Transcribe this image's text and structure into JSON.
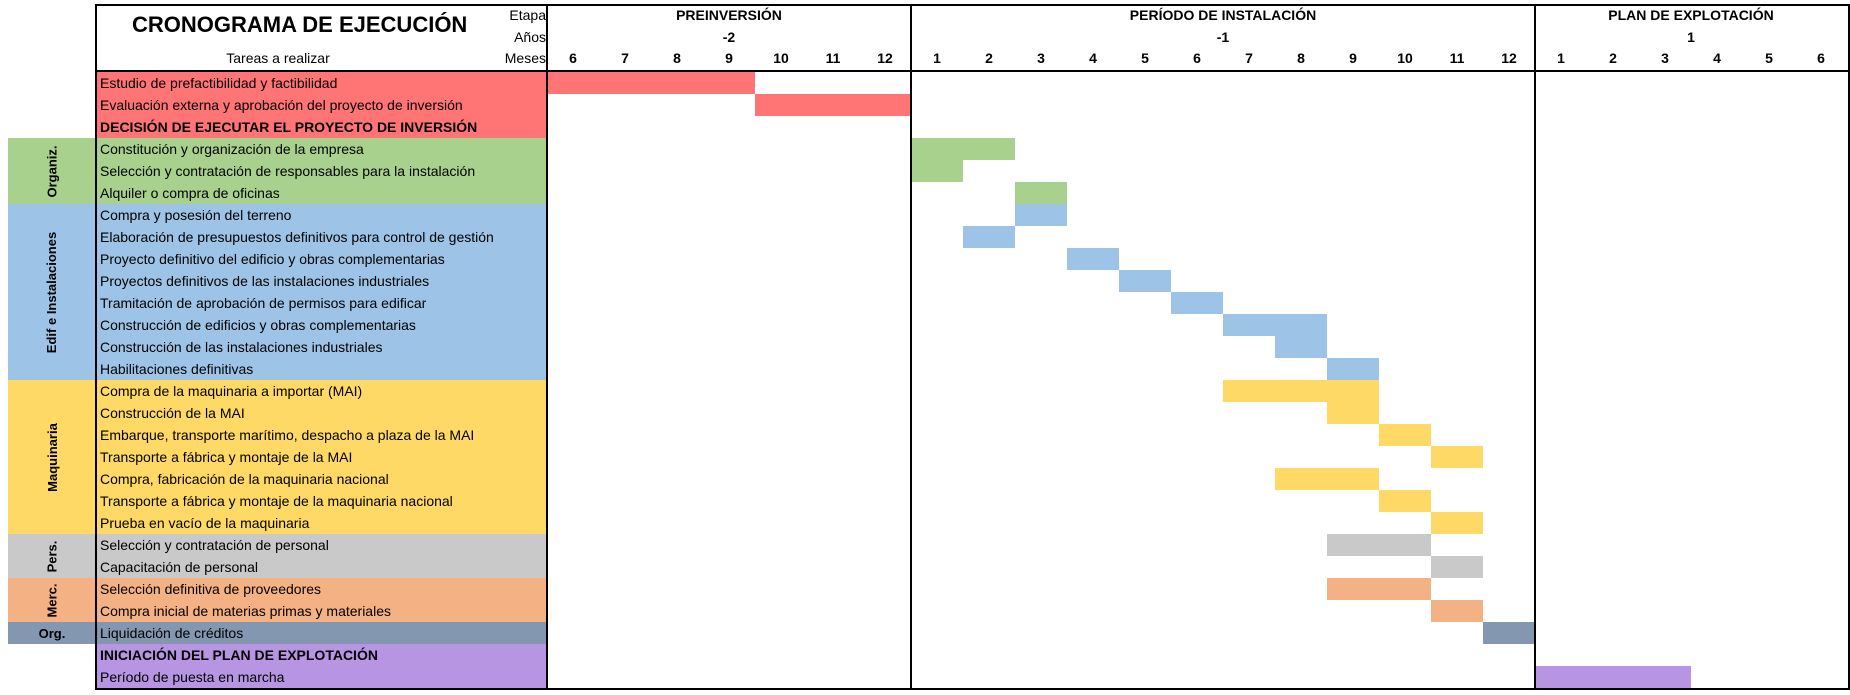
{
  "title": "CRONOGRAMA DE EJECUCIÓN",
  "header_labels": {
    "etapa": "Etapa",
    "anos": "Años",
    "meses": "Meses",
    "tareas": "Tareas a realizar"
  },
  "stages": [
    {
      "name": "PREINVERSIÓN",
      "year": "-2"
    },
    {
      "name": "PERÍODO DE INSTALACIÓN",
      "year": "-1"
    },
    {
      "name": "PLAN DE EXPLOTACIÓN",
      "year": "1"
    }
  ],
  "months": [
    "6",
    "7",
    "8",
    "9",
    "10",
    "11",
    "12",
    "1",
    "2",
    "3",
    "4",
    "5",
    "6",
    "7",
    "8",
    "9",
    "10",
    "11",
    "12",
    "1",
    "2",
    "3",
    "4",
    "5",
    "6"
  ],
  "colors": {
    "red": "#ff7575",
    "green": "#a9d18e",
    "blue": "#9dc3e6",
    "yellow": "#ffd966",
    "gray": "#c9c9c9",
    "orange": "#f4b183",
    "slate": "#8497b0",
    "purple": "#b895e2"
  },
  "groups": [
    {
      "label": "",
      "color": "red",
      "start_row": 0,
      "rows": 3
    },
    {
      "label": "Organiz.",
      "color": "green",
      "start_row": 3,
      "rows": 3
    },
    {
      "label": "Edif e Instalaciones",
      "color": "blue",
      "start_row": 6,
      "rows": 8
    },
    {
      "label": "Maquinaria",
      "color": "yellow",
      "start_row": 14,
      "rows": 7
    },
    {
      "label": "Pers.",
      "color": "gray",
      "start_row": 21,
      "rows": 2
    },
    {
      "label": "Merc.",
      "color": "orange",
      "start_row": 23,
      "rows": 2
    },
    {
      "label": "Org.",
      "color": "slate",
      "start_row": 25,
      "rows": 1,
      "horizontal": true
    },
    {
      "label": "",
      "color": "purple",
      "start_row": 26,
      "rows": 2
    }
  ],
  "tasks": [
    {
      "label": "Estudio de prefactibilidad y factibilidad",
      "color": "red",
      "bar": [
        0,
        4
      ]
    },
    {
      "label": "Evaluación externa y aprobación del proyecto de inversión",
      "color": "red",
      "bar": [
        4,
        7
      ]
    },
    {
      "label": "DECISIÓN DE EJECUTAR EL PROYECTO DE INVERSIÓN",
      "color": "red",
      "bold": true
    },
    {
      "label": "Constitución y organización de la empresa",
      "color": "green",
      "bar": [
        7,
        9
      ]
    },
    {
      "label": "Selección y contratación de responsables para la instalación",
      "color": "green",
      "bar": [
        7,
        8
      ]
    },
    {
      "label": "Alquiler o compra de oficinas",
      "color": "green",
      "bar": [
        9,
        10
      ]
    },
    {
      "label": "Compra y posesión del terreno",
      "color": "blue",
      "bar": [
        9,
        10
      ]
    },
    {
      "label": "Elaboración de presupuestos definitivos para control de gestión",
      "color": "blue",
      "bar": [
        8,
        9
      ]
    },
    {
      "label": "Proyecto definitivo del edificio y obras complementarias",
      "color": "blue",
      "bar": [
        10,
        11
      ]
    },
    {
      "label": "Proyectos definitivos de las instalaciones industriales",
      "color": "blue",
      "bar": [
        11,
        12
      ]
    },
    {
      "label": "Tramitación de aprobación de permisos para edificar",
      "color": "blue",
      "bar": [
        12,
        13
      ]
    },
    {
      "label": "Construcción de edificios y obras complementarias",
      "color": "blue",
      "bar": [
        13,
        15
      ]
    },
    {
      "label": "Construcción de las instalaciones industriales",
      "color": "blue",
      "bar": [
        14,
        15
      ]
    },
    {
      "label": "Habilitaciones definitivas",
      "color": "blue",
      "bar": [
        15,
        16
      ]
    },
    {
      "label": "Compra de la maquinaria a importar (MAI)",
      "color": "yellow",
      "bar": [
        13,
        16
      ]
    },
    {
      "label": "Construcción de la MAI",
      "color": "yellow",
      "bar": [
        15,
        16
      ]
    },
    {
      "label": "Embarque, transporte marítimo, despacho a plaza de la MAI",
      "color": "yellow",
      "bar": [
        16,
        17
      ]
    },
    {
      "label": "Transporte a fábrica y montaje de la MAI",
      "color": "yellow",
      "bar": [
        17,
        18
      ]
    },
    {
      "label": "Compra, fabricación de la maquinaria nacional",
      "color": "yellow",
      "bar": [
        14,
        16
      ]
    },
    {
      "label": "Transporte a fábrica y montaje de la maquinaria nacional",
      "color": "yellow",
      "bar": [
        16,
        17
      ]
    },
    {
      "label": "Prueba en vacío de la maquinaria",
      "color": "yellow",
      "bar": [
        17,
        18
      ]
    },
    {
      "label": "Selección y contratación de personal",
      "color": "gray",
      "bar": [
        15,
        17
      ]
    },
    {
      "label": "Capacitación de personal",
      "color": "gray",
      "bar": [
        17,
        18
      ]
    },
    {
      "label": "Selección definitiva de proveedores",
      "color": "orange",
      "bar": [
        15,
        17
      ]
    },
    {
      "label": "Compra inicial de materias primas y materiales",
      "color": "orange",
      "bar": [
        17,
        18
      ]
    },
    {
      "label": "Liquidación de créditos",
      "color": "slate",
      "bar": [
        18,
        19
      ]
    },
    {
      "label": "INICIACIÓN DEL PLAN DE EXPLOTACIÓN",
      "color": "purple",
      "bold": true
    },
    {
      "label": "Período de puesta en marcha",
      "color": "purple",
      "bar": [
        19,
        22
      ]
    }
  ]
}
